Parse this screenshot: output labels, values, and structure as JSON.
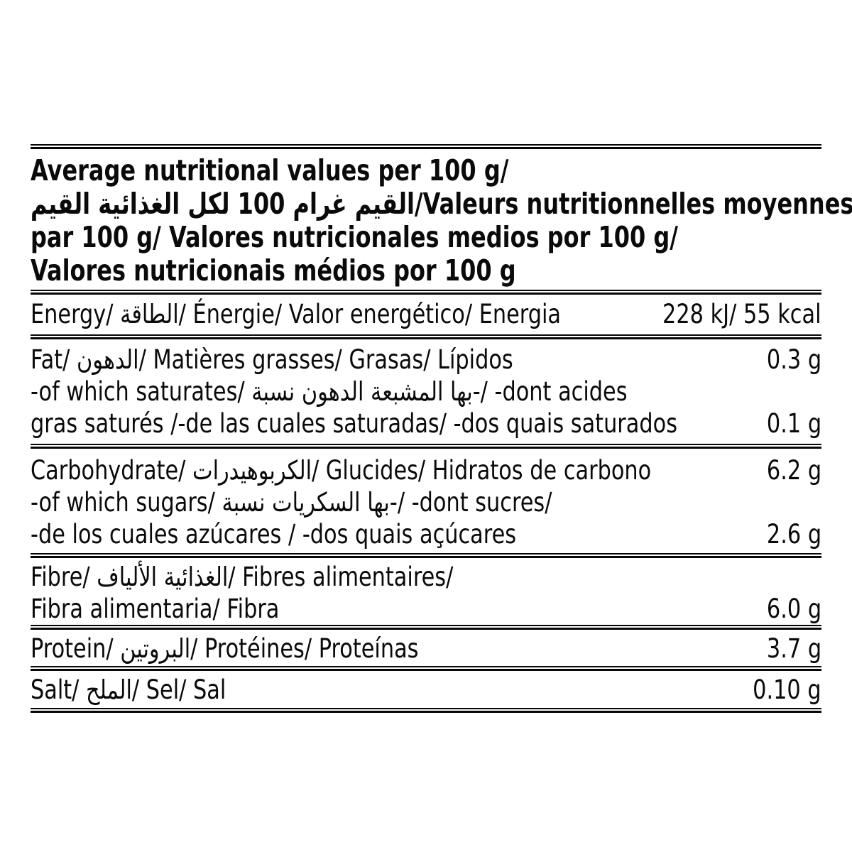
{
  "header": {
    "line1": "Average nutritional values per 100 g/",
    "line2": "القيم‎ الغذائية‎ لكل‎ 100 غرام‎ القيم‎/Valeurs nutritionnelles moyennes",
    "line3": "par 100 g/  Valores nutricionales medios por 100 g/",
    "line4": "Valores nutricionais médios por 100 g"
  },
  "rows": [
    {
      "id": "energy",
      "lines": [
        {
          "text": "Energy/ الطاقة/ Énergie/ Valor energético/ Energia",
          "value": "228 kJ/ 55 kcal"
        }
      ]
    },
    {
      "id": "fat",
      "lines": [
        {
          "text": "Fat/ الدهون/ Matières grasses/ Grasas/ Lípidos",
          "value": "0.3 g"
        },
        {
          "text": "-of which saturates/ نسبة‎ الدهون‎ المشبعة‎ بها‎-/ -dont acides",
          "value": null
        },
        {
          "text": "gras saturés /-de las cuales saturadas/ -dos quais saturados",
          "value": "0.1 g"
        }
      ]
    },
    {
      "id": "carbohydrate",
      "lines": [
        {
          "text": "Carbohydrate/ الكربوهيدرات/ Glucides/ Hidratos de carbono",
          "value": "6.2 g"
        },
        {
          "text": "-of which sugars/ نسبة‎ السكريات‎ بها‎-/ -dont sucres/",
          "value": null
        },
        {
          "text": "-de los cuales azúcares / -dos quais açúcares",
          "value": "2.6 g"
        }
      ]
    },
    {
      "id": "fibre",
      "lines": [
        {
          "text": "Fibre/ الألياف‎ الغذائية‎/ Fibres alimentaires/",
          "value": null
        },
        {
          "text": "Fibra alimentaria/ Fibra",
          "value": "6.0 g"
        }
      ]
    },
    {
      "id": "protein",
      "lines": [
        {
          "text": "Protein/ البروتين/ Protéines/ Proteínas",
          "value": "3.7 g"
        }
      ]
    },
    {
      "id": "salt",
      "lines": [
        {
          "text": "Salt/ الملح/ Sel/ Sal",
          "value": "0.10 g"
        }
      ]
    }
  ]
}
